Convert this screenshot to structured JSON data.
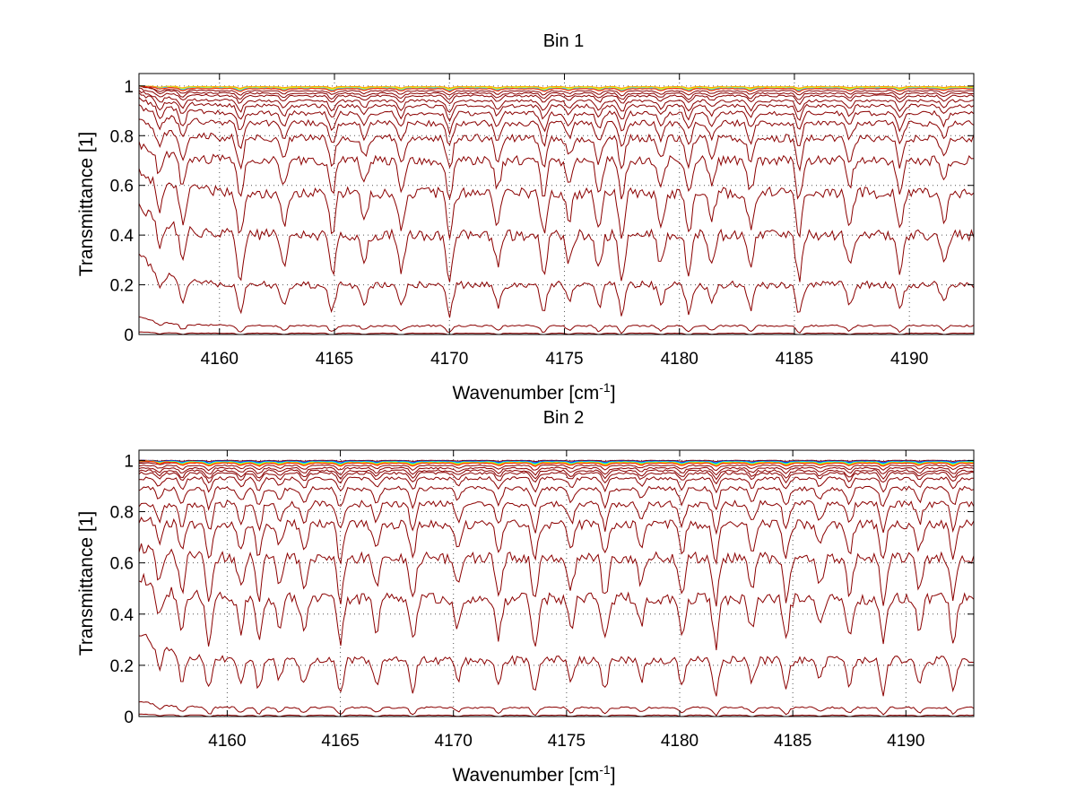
{
  "chart_data": [
    {
      "type": "line",
      "title": "Bin 1",
      "xlabel_main": "Wavenumber [cm",
      "xlabel_sup": "-1",
      "xlabel_close": "]",
      "ylabel": "Transmittance [1]",
      "xlim": [
        4156.5,
        4192.8
      ],
      "ylim": [
        0,
        1.05
      ],
      "xticks": [
        4160,
        4165,
        4170,
        4175,
        4180,
        4185,
        4190
      ],
      "xtick_labels": [
        "4160",
        "4165",
        "4170",
        "4175",
        "4180",
        "4185",
        "4190"
      ],
      "yticks": [
        0,
        0.2,
        0.4,
        0.6,
        0.8,
        1
      ],
      "ytick_labels": [
        "0",
        "0.2",
        "0.4",
        "0.6",
        "0.8",
        "1"
      ],
      "grid": "dotted",
      "series_color": "#8b0000",
      "levels": [
        0.005,
        0.035,
        0.2,
        0.4,
        0.57,
        0.7,
        0.79,
        0.85,
        0.89,
        0.92,
        0.94,
        0.96,
        0.97,
        0.98,
        0.99,
        0.995
      ],
      "start_values": [
        0.01,
        0.07,
        0.32,
        0.52,
        0.66,
        0.77,
        0.86,
        0.92,
        0.95,
        0.97,
        0.98,
        0.99,
        1.0,
        1.0,
        1.0,
        1.0
      ],
      "absorption_lines": [
        4157.4,
        4158.4,
        4160.9,
        4162.8,
        4164.9,
        4166.3,
        4167.9,
        4170.0,
        4172.1,
        4174.1,
        4175.2,
        4176.5,
        4177.5,
        4179.2,
        4180.4,
        4181.4,
        4183.1,
        4185.2,
        4187.4,
        4189.6,
        4191.5
      ],
      "top_band_colors": [
        "#ff9900",
        "#ffcc00",
        "#ccff33",
        "#33ccff",
        "#ff3300"
      ]
    },
    {
      "type": "line",
      "title": "Bin 2",
      "xlabel_main": "Wavenumber [cm",
      "xlabel_sup": "-1",
      "xlabel_close": "]",
      "ylabel": "Transmittance [1]",
      "xlim": [
        4156.1,
        4193.0
      ],
      "ylim": [
        0,
        1.04
      ],
      "xticks": [
        4160,
        4165,
        4170,
        4175,
        4180,
        4185,
        4190
      ],
      "xtick_labels": [
        "4160",
        "4165",
        "4170",
        "4175",
        "4180",
        "4185",
        "4190"
      ],
      "yticks": [
        0,
        0.2,
        0.4,
        0.6,
        0.8,
        1
      ],
      "ytick_labels": [
        "0",
        "0.2",
        "0.4",
        "0.6",
        "0.8",
        "1"
      ],
      "grid": "dotted",
      "series_color": "#8b0000",
      "levels": [
        0.005,
        0.035,
        0.22,
        0.46,
        0.62,
        0.75,
        0.83,
        0.89,
        0.93,
        0.95,
        0.96,
        0.97,
        0.98,
        0.99,
        0.995,
        1.0
      ],
      "start_values": [
        0.01,
        0.06,
        0.33,
        0.55,
        0.66,
        0.77,
        0.83,
        0.89,
        0.93,
        0.95,
        0.96,
        0.97,
        0.98,
        0.99,
        0.995,
        1.0
      ],
      "absorption_lines": [
        4157.0,
        4158.0,
        4159.2,
        4160.6,
        4161.4,
        4162.3,
        4163.4,
        4165.0,
        4166.6,
        4168.2,
        4170.2,
        4172.0,
        4173.6,
        4175.2,
        4176.7,
        4178.3,
        4180.1,
        4181.6,
        4183.2,
        4184.7,
        4186.2,
        4187.5,
        4189.0,
        4190.6,
        4192.1
      ],
      "top_band_colors": [
        "#0033ff",
        "#00ccff",
        "#66ff66",
        "#ffcc00",
        "#ff3300"
      ]
    }
  ]
}
